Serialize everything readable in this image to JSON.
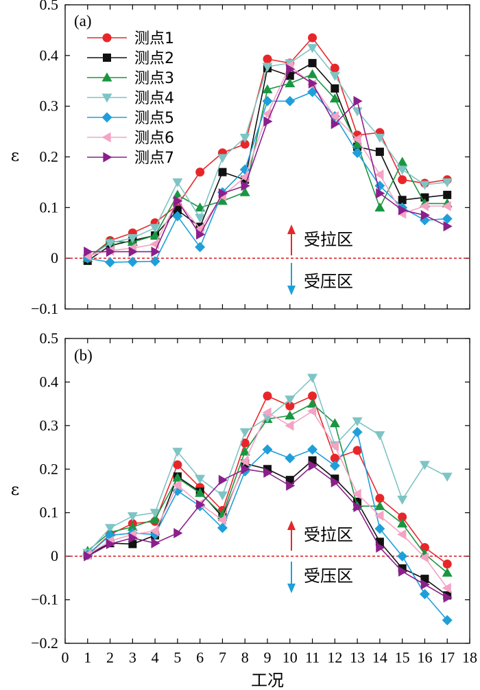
{
  "chart_data": [
    {
      "panel_label": "(a)",
      "type": "line",
      "xlabel": "",
      "ylabel": "ε",
      "xlim": [
        0,
        18
      ],
      "ylim": [
        -0.1,
        0.5
      ],
      "yticks": [
        "−0.1",
        "0",
        "0.1",
        "0.2",
        "0.3",
        "0.4",
        "0.5"
      ],
      "xticks": [],
      "x": [
        1,
        2,
        3,
        4,
        5,
        6,
        7,
        8,
        9,
        10,
        11,
        12,
        13,
        14,
        15,
        16,
        17
      ],
      "legend_position": "top-left",
      "reference_line": 0,
      "zone_labels": {
        "tension": "受拉区",
        "compression": "受压区"
      },
      "series": [
        {
          "name": "测点1",
          "color": "#e8262a",
          "marker": "circle",
          "values": [
            0.0,
            0.035,
            0.05,
            0.07,
            0.105,
            0.17,
            0.208,
            0.225,
            0.393,
            0.385,
            0.435,
            0.375,
            0.243,
            0.248,
            0.155,
            0.148,
            0.155
          ]
        },
        {
          "name": "测点2",
          "color": "#111111",
          "marker": "square",
          "values": [
            -0.005,
            0.025,
            0.035,
            0.045,
            0.095,
            0.062,
            0.17,
            0.155,
            0.375,
            0.36,
            0.385,
            0.335,
            0.22,
            0.21,
            0.115,
            0.12,
            0.125
          ]
        },
        {
          "name": "测点3",
          "color": "#1a9641",
          "marker": "triangle-up",
          "values": [
            0.0,
            0.033,
            0.032,
            0.045,
            0.125,
            0.1,
            0.113,
            0.13,
            0.333,
            0.345,
            0.363,
            0.315,
            0.225,
            0.1,
            0.19,
            0.108,
            0.108
          ]
        },
        {
          "name": "测点4",
          "color": "#7ec4c4",
          "marker": "triangle-down",
          "values": [
            0.0,
            0.03,
            0.04,
            0.06,
            0.15,
            0.08,
            0.198,
            0.238,
            0.378,
            0.385,
            0.415,
            0.36,
            0.29,
            0.238,
            0.175,
            0.145,
            0.15
          ]
        },
        {
          "name": "测点5",
          "color": "#1f9fd9",
          "marker": "diamond",
          "values": [
            0.0,
            -0.008,
            -0.007,
            -0.006,
            0.083,
            0.022,
            0.13,
            0.175,
            0.31,
            0.31,
            0.328,
            0.28,
            0.208,
            0.143,
            0.1,
            0.075,
            0.078
          ]
        },
        {
          "name": "测点6",
          "color": "#f4a3c4",
          "marker": "triangle-left",
          "values": [
            0.005,
            0.015,
            0.02,
            0.028,
            0.113,
            0.058,
            0.123,
            0.16,
            0.285,
            0.38,
            0.343,
            0.28,
            0.235,
            0.165,
            0.088,
            0.103,
            0.103
          ]
        },
        {
          "name": "测点7",
          "color": "#8b1f8b",
          "marker": "triangle-right",
          "values": [
            0.013,
            0.013,
            0.013,
            0.013,
            0.113,
            0.047,
            0.128,
            0.143,
            0.27,
            0.373,
            0.345,
            0.265,
            0.31,
            0.128,
            0.095,
            0.085,
            0.063
          ]
        }
      ]
    },
    {
      "panel_label": "(b)",
      "type": "line",
      "xlabel": "工况",
      "ylabel": "ε",
      "xlim": [
        0,
        18
      ],
      "ylim": [
        -0.2,
        0.5
      ],
      "yticks": [
        "−0.2",
        "−0.1",
        "0",
        "0.1",
        "0.2",
        "0.3",
        "0.4",
        "0.5"
      ],
      "xticks": [
        "0",
        "1",
        "2",
        "3",
        "4",
        "5",
        "6",
        "7",
        "8",
        "9",
        "10",
        "11",
        "12",
        "13",
        "14",
        "15",
        "16",
        "17",
        "18"
      ],
      "x": [
        1,
        2,
        3,
        4,
        5,
        6,
        7,
        8,
        9,
        10,
        11,
        12,
        13,
        14,
        15,
        16,
        17
      ],
      "reference_line": 0,
      "zone_labels": {
        "tension": "受拉区",
        "compression": "受压区"
      },
      "series": [
        {
          "name": "测点1",
          "color": "#e8262a",
          "marker": "circle",
          "values": [
            0.003,
            0.05,
            0.075,
            0.08,
            0.21,
            0.158,
            0.105,
            0.26,
            0.368,
            0.345,
            0.368,
            0.225,
            0.243,
            0.133,
            0.09,
            0.02,
            -0.018
          ]
        },
        {
          "name": "测点2",
          "color": "#111111",
          "marker": "square",
          "values": [
            0.003,
            0.03,
            0.028,
            0.048,
            0.183,
            0.148,
            0.09,
            0.213,
            0.2,
            0.175,
            0.22,
            0.178,
            0.125,
            0.033,
            -0.028,
            -0.052,
            -0.09
          ]
        },
        {
          "name": "测点3",
          "color": "#1a9641",
          "marker": "triangle-up",
          "values": [
            0.012,
            0.055,
            0.067,
            0.085,
            0.18,
            0.145,
            0.095,
            0.24,
            0.315,
            0.323,
            0.35,
            0.305,
            0.115,
            0.115,
            0.075,
            0.005,
            -0.038
          ]
        },
        {
          "name": "测点4",
          "color": "#7ec4c4",
          "marker": "triangle-down",
          "values": [
            0.008,
            0.065,
            0.092,
            0.1,
            0.24,
            0.178,
            0.14,
            0.285,
            0.318,
            0.36,
            0.41,
            0.255,
            0.31,
            0.278,
            0.13,
            0.21,
            0.183
          ]
        },
        {
          "name": "测点5",
          "color": "#1f9fd9",
          "marker": "diamond",
          "values": [
            0.003,
            0.048,
            0.053,
            0.05,
            0.15,
            0.115,
            0.065,
            0.195,
            0.245,
            0.225,
            0.245,
            0.208,
            0.285,
            0.063,
            0.0,
            -0.087,
            -0.147
          ]
        },
        {
          "name": "测点6",
          "color": "#f4a3c4",
          "marker": "triangle-left",
          "values": [
            0.003,
            0.035,
            0.05,
            0.058,
            0.163,
            0.12,
            0.083,
            0.218,
            0.33,
            0.3,
            0.333,
            0.253,
            0.143,
            0.093,
            0.05,
            -0.003,
            -0.073
          ]
        },
        {
          "name": "测点7",
          "color": "#8b1f8b",
          "marker": "triangle-right",
          "values": [
            0.0,
            0.028,
            0.042,
            0.03,
            0.053,
            0.118,
            0.175,
            0.2,
            0.192,
            0.162,
            0.208,
            0.17,
            0.113,
            0.02,
            -0.035,
            -0.065,
            -0.095
          ]
        }
      ]
    }
  ]
}
